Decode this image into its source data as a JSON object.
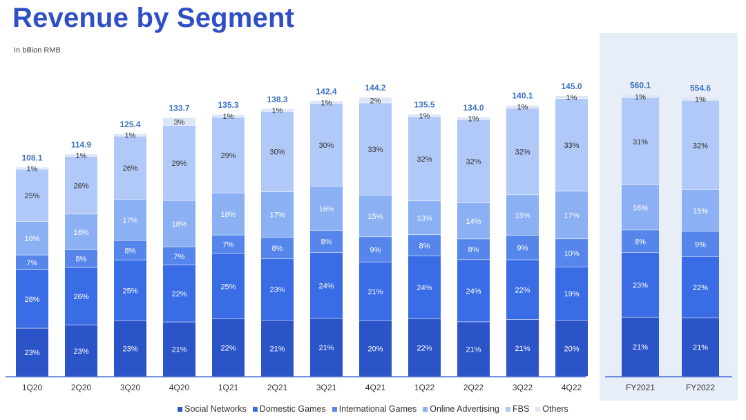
{
  "title": "Revenue by Segment",
  "subtitle": "In billion RMB",
  "colors": {
    "title": "#2f4fc7",
    "total_label": "#3b73c4",
    "highlight_panel": "#e8eef8",
    "axis": "#2e57c8",
    "series": [
      "#2b54c9",
      "#3a6ce6",
      "#5686ec",
      "#8bb0f3",
      "#b1c9f8",
      "#dde6f7"
    ],
    "inside_text_light": "#ffffff",
    "inside_text_dark": "#333333"
  },
  "chart_data": {
    "type": "stacked-bar",
    "unit": "percent share; totals in billion RMB",
    "legend_position": "bottom",
    "series_names": [
      "Social Networks",
      "Domestic Games",
      "International Games",
      "Online Advertising",
      "FBS",
      "Others"
    ],
    "quarterly": {
      "categories": [
        "1Q20",
        "2Q20",
        "3Q20",
        "4Q20",
        "1Q21",
        "2Q21",
        "3Q21",
        "4Q21",
        "1Q22",
        "2Q22",
        "3Q22",
        "4Q22"
      ],
      "totals": [
        "108.1",
        "114.9",
        "125.4",
        "133.7",
        "135.3",
        "138.3",
        "142.4",
        "144.2",
        "135.5",
        "134.0",
        "140.1",
        "145.0"
      ],
      "shares": [
        [
          23,
          28,
          7,
          16,
          25,
          1
        ],
        [
          23,
          26,
          8,
          16,
          26,
          1
        ],
        [
          23,
          25,
          8,
          17,
          26,
          1
        ],
        [
          21,
          22,
          7,
          18,
          29,
          3
        ],
        [
          22,
          25,
          7,
          16,
          29,
          1
        ],
        [
          21,
          23,
          8,
          17,
          30,
          1
        ],
        [
          21,
          24,
          8,
          16,
          30,
          1
        ],
        [
          20,
          21,
          9,
          15,
          33,
          2
        ],
        [
          22,
          24,
          8,
          13,
          32,
          1
        ],
        [
          21,
          24,
          8,
          14,
          32,
          1
        ],
        [
          21,
          22,
          9,
          15,
          32,
          1
        ],
        [
          20,
          19,
          10,
          17,
          33,
          1
        ]
      ]
    },
    "annual": {
      "categories": [
        "FY2021",
        "FY2022"
      ],
      "totals": [
        "560.1",
        "554.6"
      ],
      "shares": [
        [
          21,
          23,
          8,
          16,
          31,
          1
        ],
        [
          21,
          22,
          9,
          15,
          32,
          1
        ]
      ]
    }
  }
}
